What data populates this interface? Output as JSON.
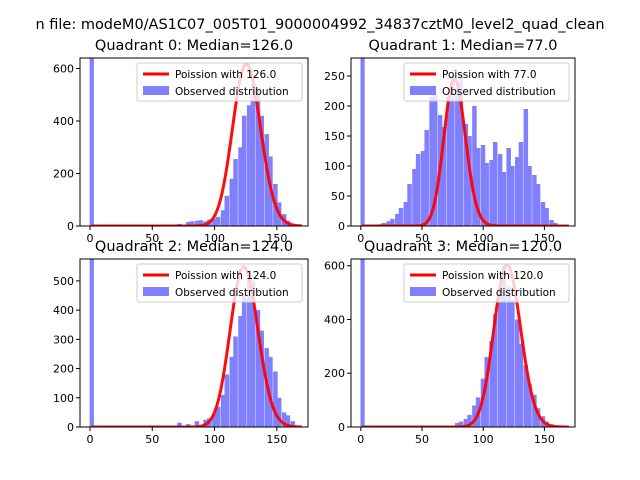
{
  "figure": {
    "suptitle": "n file: modeM0/AS1C07_005T01_9000004992_34837cztM0_level2_quad_clean"
  },
  "colors": {
    "poisson": "#ff0000",
    "hist": "#8080ff",
    "spike": "#8080ff",
    "background": "#ffffff"
  },
  "chart_data": [
    {
      "type": "bar",
      "title": "Quadrant 0: Median=126.0",
      "median": 126.0,
      "xlim": [
        -8,
        175
      ],
      "ylim": [
        0,
        640
      ],
      "xticks": [
        0,
        50,
        100,
        150
      ],
      "yticks": [
        0,
        200,
        400,
        600
      ],
      "legend": [
        "Poission with 126.0",
        "Observed distribution"
      ],
      "legend_loc": "upper-right",
      "spike": {
        "x": 0,
        "value": 640
      },
      "bin_width": 3.5,
      "bins_x": [
        28,
        49,
        70,
        77,
        80,
        84,
        87,
        91,
        94,
        98,
        101,
        105,
        108,
        112,
        115,
        119,
        122,
        126,
        129,
        133,
        136,
        140,
        143,
        147,
        150,
        154,
        157,
        161,
        164,
        168
      ],
      "bins_y": [
        4,
        3,
        8,
        15,
        18,
        20,
        22,
        18,
        25,
        28,
        35,
        60,
        115,
        180,
        255,
        300,
        420,
        460,
        540,
        520,
        420,
        350,
        265,
        160,
        90,
        45,
        20,
        6,
        3,
        1
      ],
      "poisson_peak": 617
    },
    {
      "type": "bar",
      "title": "Quadrant 1: Median=77.0",
      "median": 77.0,
      "xlim": [
        -8,
        175
      ],
      "ylim": [
        0,
        280
      ],
      "xticks": [
        0,
        50,
        100,
        150
      ],
      "yticks": [
        0,
        50,
        100,
        150,
        200,
        250
      ],
      "legend": [
        "Poission with 77.0",
        "Observed distribution"
      ],
      "legend_loc": "upper-right",
      "spike": {
        "x": 0,
        "value": 280
      },
      "bin_width": 3.5,
      "bins_x": [
        14,
        17,
        21,
        24,
        28,
        31,
        35,
        38,
        42,
        45,
        49,
        52,
        56,
        59,
        63,
        66,
        70,
        73,
        77,
        80,
        84,
        87,
        91,
        94,
        98,
        101,
        105,
        108,
        112,
        115,
        119,
        122,
        126,
        129,
        133,
        136,
        140,
        143,
        147,
        150,
        154,
        157,
        161
      ],
      "bins_y": [
        3,
        5,
        8,
        12,
        20,
        30,
        40,
        70,
        95,
        120,
        125,
        160,
        215,
        220,
        185,
        165,
        215,
        250,
        230,
        255,
        170,
        150,
        200,
        130,
        135,
        105,
        110,
        140,
        120,
        90,
        130,
        100,
        115,
        140,
        195,
        100,
        85,
        70,
        40,
        30,
        10,
        5,
        2
      ],
      "poisson_peak": 245
    },
    {
      "type": "bar",
      "title": "Quadrant 2: Median=124.0",
      "median": 124.0,
      "xlim": [
        -8,
        175
      ],
      "ylim": [
        0,
        575
      ],
      "xticks": [
        0,
        50,
        100,
        150
      ],
      "yticks": [
        0,
        100,
        200,
        300,
        400,
        500
      ],
      "legend": [
        "Poission with 124.0",
        "Observed distribution"
      ],
      "legend_loc": "upper-right",
      "spike": {
        "x": 0,
        "value": 575
      },
      "bin_width": 3.5,
      "bins_x": [
        70,
        77,
        84,
        91,
        94,
        98,
        101,
        105,
        108,
        112,
        115,
        119,
        122,
        126,
        129,
        133,
        136,
        140,
        143,
        147,
        150,
        154,
        157,
        161,
        164
      ],
      "bins_y": [
        15,
        10,
        20,
        25,
        30,
        45,
        70,
        110,
        180,
        240,
        310,
        380,
        450,
        510,
        500,
        400,
        330,
        270,
        240,
        190,
        100,
        50,
        40,
        20,
        5
      ],
      "poisson_peak": 548
    },
    {
      "type": "bar",
      "title": "Quadrant 3: Median=120.0",
      "median": 120.0,
      "xlim": [
        -8,
        175
      ],
      "ylim": [
        0,
        625
      ],
      "xticks": [
        0,
        50,
        100,
        150
      ],
      "yticks": [
        0,
        200,
        400,
        600
      ],
      "legend": [
        "Poission with 120.0",
        "Observed distribution"
      ],
      "legend_loc": "upper-right",
      "spike": {
        "x": 0,
        "value": 625
      },
      "bin_width": 3.5,
      "bins_x": [
        73,
        77,
        80,
        84,
        87,
        91,
        94,
        98,
        101,
        105,
        108,
        112,
        115,
        119,
        122,
        126,
        129,
        133,
        136,
        140,
        143,
        147,
        150,
        154,
        157
      ],
      "bins_y": [
        5,
        15,
        20,
        30,
        45,
        80,
        110,
        180,
        260,
        320,
        420,
        490,
        600,
        520,
        470,
        400,
        310,
        230,
        160,
        120,
        70,
        40,
        20,
        10,
        3
      ],
      "poisson_peak": 602
    }
  ]
}
